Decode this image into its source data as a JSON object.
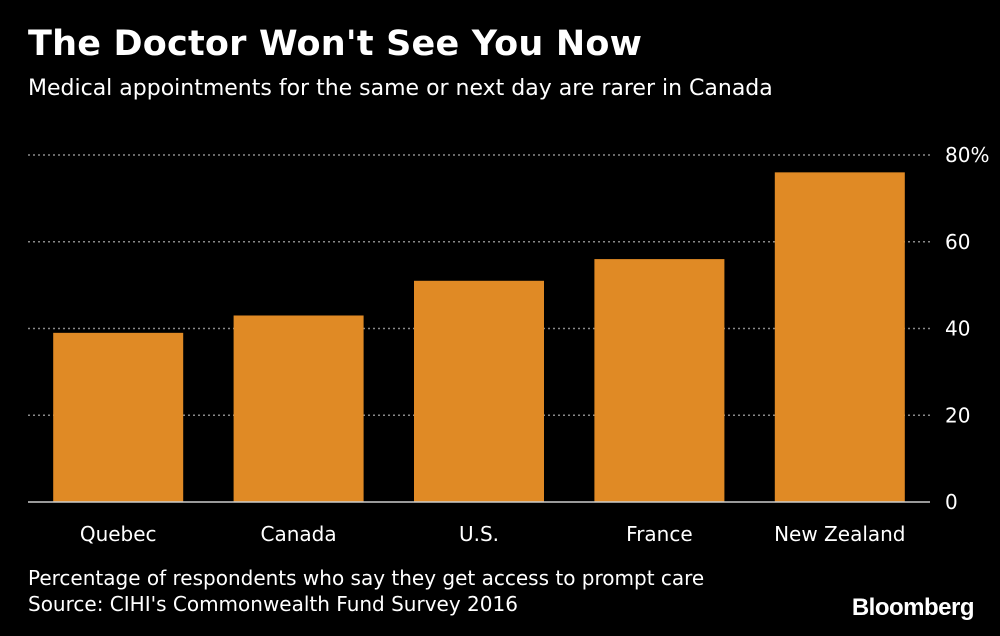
{
  "chart_data": {
    "type": "bar",
    "title": "The Doctor Won't See You Now",
    "subtitle": "Medical appointments for the same or next day are rarer in Canada",
    "categories": [
      "Quebec",
      "Canada",
      "U.S.",
      "France",
      "New Zealand"
    ],
    "values": [
      39,
      43,
      51,
      56,
      76
    ],
    "ylim": [
      0,
      80
    ],
    "yticks": [
      0,
      20,
      40,
      60,
      80
    ],
    "ytick_labels": [
      "0",
      "20",
      "40",
      "60",
      "80%"
    ],
    "y_axis_position": "right",
    "grid": true,
    "colors": {
      "bar": "#E08A25",
      "background": "#000000",
      "grid": "#8a8a8a",
      "text": "#ffffff"
    }
  },
  "footer": {
    "note": "Percentage of respondents who say they get access to prompt care",
    "source": "Source: CIHI's Commonwealth Fund Survey 2016",
    "brand": "Bloomberg"
  }
}
